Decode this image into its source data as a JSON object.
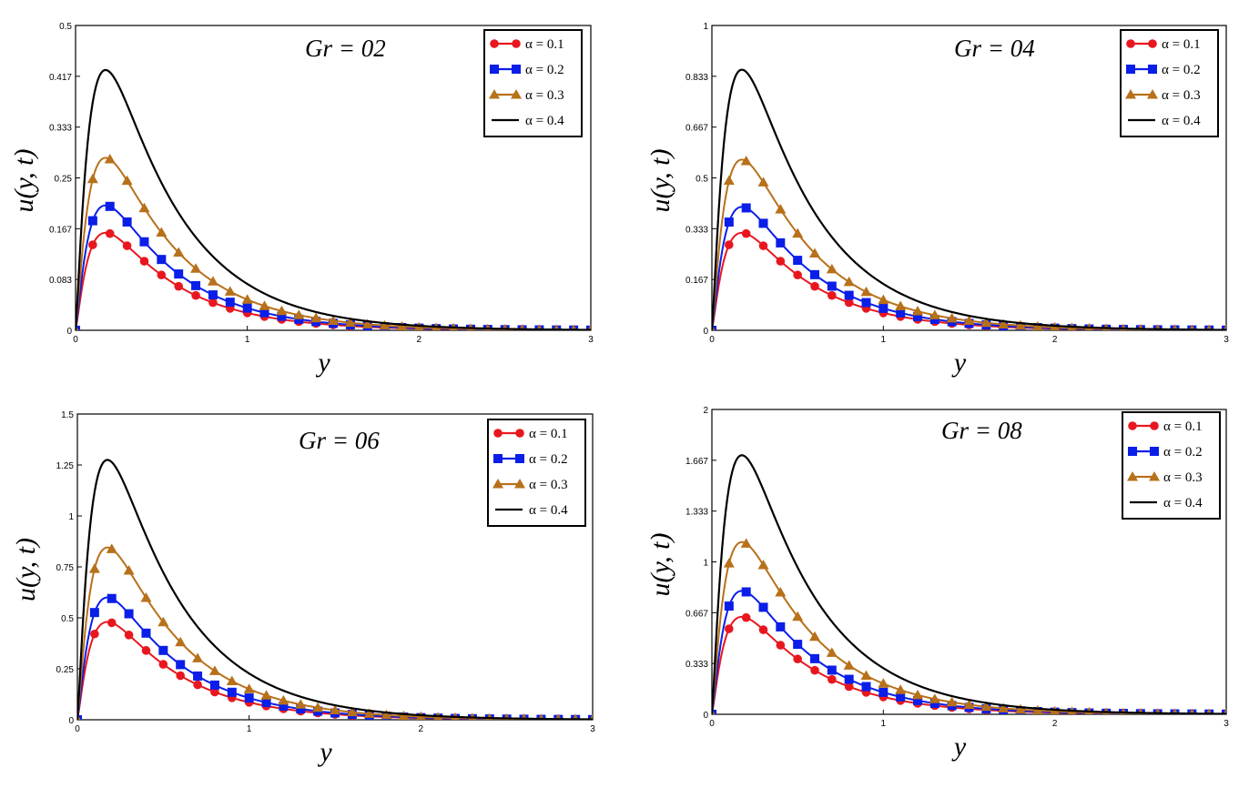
{
  "colors": {
    "series": [
      "#e8171f",
      "#0a1ee8",
      "#b8701a",
      "#000000"
    ],
    "background": "#ffffff",
    "frame": "#000000"
  },
  "chart_data": [
    {
      "type": "line",
      "title": "Gr = 02",
      "xlabel": "y",
      "ylabel": "u(y, t)",
      "xlim": [
        0,
        3
      ],
      "ylim": [
        0,
        0.5
      ],
      "xticks": [
        "0",
        "1",
        "2",
        "3"
      ],
      "yticks": [
        "0",
        "0.083",
        "0.167",
        "0.25",
        "0.333",
        "0.417",
        "0.5"
      ],
      "legend_position": "top-right",
      "series": [
        {
          "name": "α = 0.1",
          "marker": "circle",
          "peak": 0.16
        },
        {
          "name": "α = 0.2",
          "marker": "square",
          "peak": 0.205
        },
        {
          "name": "α = 0.3",
          "marker": "triangle",
          "peak": 0.283
        },
        {
          "name": "α = 0.4",
          "marker": "none",
          "peak": 0.427
        }
      ]
    },
    {
      "type": "line",
      "title": "Gr = 04",
      "xlabel": "y",
      "ylabel": "u(y, t)",
      "xlim": [
        0,
        3
      ],
      "ylim": [
        0,
        1
      ],
      "xticks": [
        "0",
        "1",
        "2",
        "3"
      ],
      "yticks": [
        "0",
        "0.167",
        "0.333",
        "0.5",
        "0.667",
        "0.833",
        "1"
      ],
      "legend_position": "top-right",
      "series": [
        {
          "name": "α = 0.1",
          "marker": "circle",
          "peak": 0.32
        },
        {
          "name": "α = 0.2",
          "marker": "square",
          "peak": 0.405
        },
        {
          "name": "α = 0.3",
          "marker": "triangle",
          "peak": 0.56
        },
        {
          "name": "α = 0.4",
          "marker": "none",
          "peak": 0.855
        }
      ]
    },
    {
      "type": "line",
      "title": "Gr = 06",
      "xlabel": "y",
      "ylabel": "u(y, t)",
      "xlim": [
        0,
        3
      ],
      "ylim": [
        0,
        1.5
      ],
      "xticks": [
        "0",
        "1",
        "2",
        "3"
      ],
      "yticks": [
        "0",
        "0.25",
        "0.5",
        "0.75",
        "1",
        "1.25",
        "1.5"
      ],
      "legend_position": "top-right",
      "series": [
        {
          "name": "α = 0.1",
          "marker": "circle",
          "peak": 0.48
        },
        {
          "name": "α = 0.2",
          "marker": "square",
          "peak": 0.6
        },
        {
          "name": "α = 0.3",
          "marker": "triangle",
          "peak": 0.845
        },
        {
          "name": "α = 0.4",
          "marker": "none",
          "peak": 1.275
        }
      ]
    },
    {
      "type": "line",
      "title": "Gr = 08",
      "xlabel": "y",
      "ylabel": "u(y, t)",
      "xlim": [
        0,
        3
      ],
      "ylim": [
        0,
        2
      ],
      "xticks": [
        "0",
        "1",
        "2",
        "3"
      ],
      "yticks": [
        "0",
        "0.333",
        "0.667",
        "1",
        "1.333",
        "1.667",
        "2"
      ],
      "legend_position": "top-right",
      "series": [
        {
          "name": "α = 0.1",
          "marker": "circle",
          "peak": 0.64
        },
        {
          "name": "α = 0.2",
          "marker": "square",
          "peak": 0.81
        },
        {
          "name": "α = 0.3",
          "marker": "triangle",
          "peak": 1.13
        },
        {
          "name": "α = 0.4",
          "marker": "none",
          "peak": 1.7
        }
      ]
    }
  ]
}
